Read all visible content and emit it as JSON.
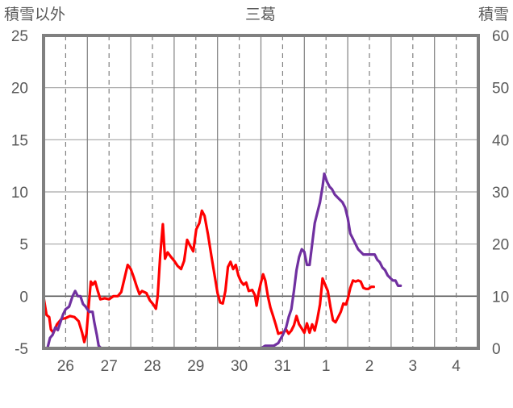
{
  "chart_data": {
    "type": "line",
    "title": "三葛",
    "ylabel_left": "積雪以外",
    "ylabel_right": "積雪",
    "ylim_left": [
      -5,
      25
    ],
    "ylim_right": [
      0,
      60
    ],
    "yticks_left": [
      "25",
      "20",
      "15",
      "10",
      "5",
      "0",
      "-5"
    ],
    "yticks_right": [
      "60",
      "50",
      "40",
      "30",
      "20",
      "10",
      "0"
    ],
    "categories": [
      "26",
      "27",
      "28",
      "29",
      "30",
      "31",
      "1",
      "2",
      "3",
      "4"
    ],
    "x_range_days": [
      0,
      10
    ],
    "series": [
      {
        "name": "",
        "axis": "left",
        "color": "#ff0000",
        "points": [
          [
            0.0,
            -0.3
          ],
          [
            0.06,
            -1.8
          ],
          [
            0.12,
            -2.0
          ],
          [
            0.16,
            -3.2
          ],
          [
            0.22,
            -3.5
          ],
          [
            0.3,
            -2.7
          ],
          [
            0.4,
            -2.2
          ],
          [
            0.5,
            -2.1
          ],
          [
            0.6,
            -1.9
          ],
          [
            0.7,
            -2.0
          ],
          [
            0.8,
            -2.4
          ],
          [
            0.88,
            -3.5
          ],
          [
            0.93,
            -4.4
          ],
          [
            0.98,
            -3.6
          ],
          [
            1.03,
            -1.0
          ],
          [
            1.08,
            1.4
          ],
          [
            1.12,
            1.1
          ],
          [
            1.18,
            1.4
          ],
          [
            1.24,
            0.5
          ],
          [
            1.3,
            -0.3
          ],
          [
            1.4,
            -0.2
          ],
          [
            1.5,
            -0.3
          ],
          [
            1.6,
            0.0
          ],
          [
            1.7,
            0.0
          ],
          [
            1.78,
            0.4
          ],
          [
            1.86,
            1.8
          ],
          [
            1.93,
            3.0
          ],
          [
            2.0,
            2.6
          ],
          [
            2.07,
            1.8
          ],
          [
            2.14,
            0.9
          ],
          [
            2.2,
            0.2
          ],
          [
            2.26,
            0.5
          ],
          [
            2.36,
            0.3
          ],
          [
            2.44,
            -0.4
          ],
          [
            2.52,
            -0.8
          ],
          [
            2.58,
            -1.2
          ],
          [
            2.62,
            0.0
          ],
          [
            2.68,
            4.0
          ],
          [
            2.74,
            6.9
          ],
          [
            2.79,
            3.6
          ],
          [
            2.85,
            4.2
          ],
          [
            2.92,
            3.8
          ],
          [
            3.0,
            3.4
          ],
          [
            3.08,
            2.9
          ],
          [
            3.16,
            2.6
          ],
          [
            3.23,
            3.4
          ],
          [
            3.3,
            5.4
          ],
          [
            3.36,
            4.9
          ],
          [
            3.44,
            4.3
          ],
          [
            3.51,
            6.4
          ],
          [
            3.58,
            7.0
          ],
          [
            3.64,
            8.2
          ],
          [
            3.7,
            7.7
          ],
          [
            3.78,
            5.9
          ],
          [
            3.86,
            3.8
          ],
          [
            3.94,
            1.8
          ],
          [
            4.0,
            0.3
          ],
          [
            4.06,
            -0.6
          ],
          [
            4.12,
            -0.7
          ],
          [
            4.18,
            0.5
          ],
          [
            4.24,
            2.8
          ],
          [
            4.3,
            3.3
          ],
          [
            4.36,
            2.6
          ],
          [
            4.42,
            3.0
          ],
          [
            4.48,
            2.0
          ],
          [
            4.54,
            1.4
          ],
          [
            4.6,
            1.1
          ],
          [
            4.66,
            1.3
          ],
          [
            4.72,
            0.5
          ],
          [
            4.8,
            0.6
          ],
          [
            4.86,
            0.1
          ],
          [
            4.9,
            -0.9
          ],
          [
            4.95,
            0.4
          ],
          [
            5.0,
            1.3
          ],
          [
            5.05,
            2.1
          ],
          [
            5.1,
            1.5
          ],
          [
            5.16,
            0.0
          ],
          [
            5.22,
            -1.1
          ],
          [
            5.28,
            -1.9
          ],
          [
            5.34,
            -2.7
          ],
          [
            5.4,
            -3.6
          ],
          [
            5.46,
            -3.5
          ],
          [
            5.52,
            -3.5
          ],
          [
            5.58,
            -3.2
          ],
          [
            5.64,
            -3.6
          ],
          [
            5.7,
            -3.3
          ],
          [
            5.76,
            -2.8
          ],
          [
            5.82,
            -1.9
          ],
          [
            5.88,
            -2.7
          ],
          [
            5.94,
            -3.1
          ],
          [
            6.0,
            -3.5
          ],
          [
            6.06,
            -2.6
          ],
          [
            6.12,
            -3.5
          ],
          [
            6.18,
            -2.7
          ],
          [
            6.24,
            -3.3
          ],
          [
            6.3,
            -2.2
          ],
          [
            6.36,
            -0.8
          ],
          [
            6.42,
            1.7
          ],
          [
            6.48,
            1.1
          ],
          [
            6.54,
            0.5
          ],
          [
            6.6,
            -1.0
          ],
          [
            6.66,
            -2.3
          ],
          [
            6.72,
            -2.5
          ],
          [
            6.78,
            -2.0
          ],
          [
            6.84,
            -1.5
          ],
          [
            6.9,
            -0.7
          ],
          [
            6.96,
            -0.8
          ],
          [
            7.0,
            -0.3
          ],
          [
            7.06,
            0.8
          ],
          [
            7.12,
            1.5
          ],
          [
            7.18,
            1.4
          ],
          [
            7.24,
            1.5
          ],
          [
            7.3,
            1.4
          ],
          [
            7.36,
            0.8
          ],
          [
            7.42,
            0.7
          ],
          [
            7.48,
            0.7
          ],
          [
            7.54,
            0.9
          ],
          [
            7.6,
            0.9
          ]
        ]
      },
      {
        "name": "",
        "axis": "right",
        "color": "#7030a0",
        "points": [
          [
            0.0,
            0.0
          ],
          [
            0.08,
            0.0
          ],
          [
            0.14,
            2.0
          ],
          [
            0.2,
            2.6
          ],
          [
            0.26,
            4.0
          ],
          [
            0.32,
            3.5
          ],
          [
            0.38,
            5.0
          ],
          [
            0.44,
            6.5
          ],
          [
            0.5,
            7.5
          ],
          [
            0.58,
            8.0
          ],
          [
            0.66,
            10.0
          ],
          [
            0.72,
            11.0
          ],
          [
            0.78,
            10.0
          ],
          [
            0.84,
            10.0
          ],
          [
            0.9,
            8.5
          ],
          [
            0.96,
            8.0
          ],
          [
            1.04,
            7.0
          ],
          [
            1.12,
            7.0
          ],
          [
            1.16,
            5.0
          ],
          [
            1.22,
            2.5
          ],
          [
            1.26,
            0.5
          ],
          [
            1.32,
            0.0
          ],
          [
            1.4,
            0.0
          ],
          [
            1.5,
            0.0
          ],
          [
            2.5,
            0.0
          ],
          [
            3.5,
            0.0
          ],
          [
            4.5,
            0.0
          ],
          [
            5.0,
            0.0
          ],
          [
            5.1,
            0.5
          ],
          [
            5.2,
            0.5
          ],
          [
            5.3,
            0.5
          ],
          [
            5.4,
            1.0
          ],
          [
            5.5,
            2.5
          ],
          [
            5.58,
            4.0
          ],
          [
            5.64,
            6.0
          ],
          [
            5.7,
            7.5
          ],
          [
            5.76,
            11.0
          ],
          [
            5.82,
            15.0
          ],
          [
            5.88,
            17.5
          ],
          [
            5.94,
            19.0
          ],
          [
            6.0,
            18.5
          ],
          [
            6.06,
            16.0
          ],
          [
            6.12,
            16.0
          ],
          [
            6.18,
            20.0
          ],
          [
            6.24,
            24.0
          ],
          [
            6.3,
            26.0
          ],
          [
            6.36,
            28.0
          ],
          [
            6.42,
            31.0
          ],
          [
            6.46,
            33.5
          ],
          [
            6.52,
            32.0
          ],
          [
            6.58,
            31.0
          ],
          [
            6.64,
            30.5
          ],
          [
            6.7,
            29.5
          ],
          [
            6.76,
            29.0
          ],
          [
            6.82,
            28.5
          ],
          [
            6.88,
            28.0
          ],
          [
            6.94,
            27.0
          ],
          [
            7.0,
            25.0
          ],
          [
            7.06,
            22.0
          ],
          [
            7.12,
            21.0
          ],
          [
            7.18,
            20.0
          ],
          [
            7.24,
            19.0
          ],
          [
            7.3,
            18.5
          ],
          [
            7.36,
            18.0
          ],
          [
            7.42,
            18.0
          ],
          [
            7.48,
            18.0
          ],
          [
            7.56,
            18.0
          ],
          [
            7.62,
            18.0
          ],
          [
            7.68,
            17.0
          ],
          [
            7.74,
            16.5
          ],
          [
            7.8,
            15.5
          ],
          [
            7.86,
            15.0
          ],
          [
            7.92,
            14.0
          ],
          [
            7.98,
            13.5
          ],
          [
            8.04,
            13.0
          ],
          [
            8.1,
            13.0
          ],
          [
            8.16,
            12.0
          ],
          [
            8.22,
            12.0
          ]
        ]
      }
    ],
    "grid": true
  }
}
